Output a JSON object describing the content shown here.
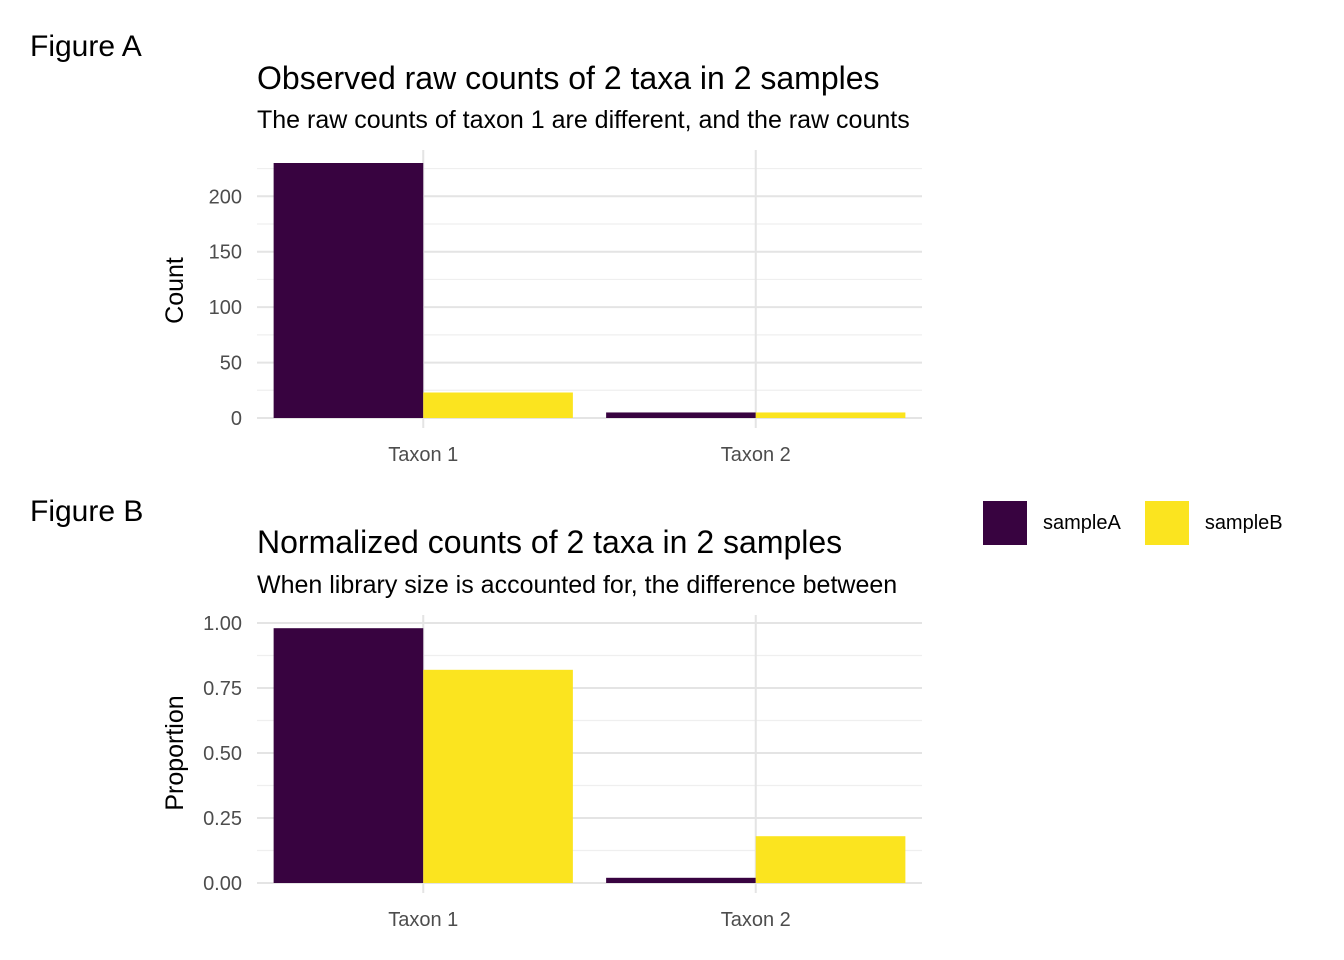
{
  "figures": [
    {
      "label": "Figure A"
    },
    {
      "label": "Figure B"
    }
  ],
  "legend": [
    {
      "name": "sampleA",
      "color": "#380340"
    },
    {
      "name": "sampleB",
      "color": "#FBE41F"
    }
  ],
  "chart_data": [
    {
      "type": "bar",
      "title": "Observed raw counts of 2 taxa in 2 samples",
      "subtitle": "The raw counts of taxon 1 are different, and the raw counts",
      "xlabel": "",
      "ylabel": "Count",
      "categories": [
        "Taxon 1",
        "Taxon 2"
      ],
      "series": [
        {
          "name": "sampleA",
          "values": [
            230,
            5
          ]
        },
        {
          "name": "sampleB",
          "values": [
            23,
            5
          ]
        }
      ],
      "ylim": [
        0,
        230
      ],
      "yticks": [
        0,
        50,
        100,
        150,
        200
      ],
      "ytick_labels": [
        "0",
        "50",
        "100",
        "150",
        "200"
      ],
      "grid": true,
      "legend_position": "right"
    },
    {
      "type": "bar",
      "title": "Normalized counts of 2 taxa in 2 samples",
      "subtitle": "When library size is accounted for, the difference between",
      "xlabel": "",
      "ylabel": "Proportion",
      "categories": [
        "Taxon 1",
        "Taxon 2"
      ],
      "series": [
        {
          "name": "sampleA",
          "values": [
            0.98,
            0.02
          ]
        },
        {
          "name": "sampleB",
          "values": [
            0.82,
            0.18
          ]
        }
      ],
      "ylim": [
        0,
        1
      ],
      "yticks": [
        0,
        0.25,
        0.5,
        0.75,
        1.0
      ],
      "ytick_labels": [
        "0.00",
        "0.25",
        "0.50",
        "0.75",
        "1.00"
      ],
      "grid": true,
      "legend_position": "right"
    }
  ]
}
